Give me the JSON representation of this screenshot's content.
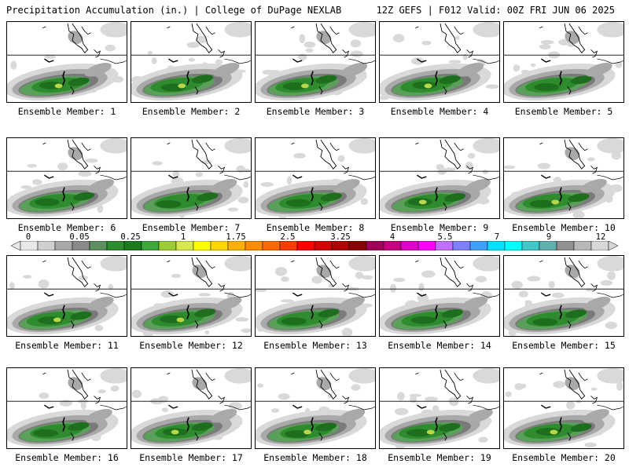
{
  "header": {
    "left_title": "Precipitation Accumulation (in.) | College of DuPage NEXLAB",
    "right_title": "12Z GEFS | F012 Valid: 00Z FRI JUN 06 2025"
  },
  "members": [
    "Ensemble Member: 1",
    "Ensemble Member: 2",
    "Ensemble Member: 3",
    "Ensemble Member: 4",
    "Ensemble Member: 5",
    "Ensemble Member: 6",
    "Ensemble Member: 7",
    "Ensemble Member: 8",
    "Ensemble Member: 9",
    "Ensemble Member: 10",
    "Ensemble Member: 11",
    "Ensemble Member: 12",
    "Ensemble Member: 13",
    "Ensemble Member: 14",
    "Ensemble Member: 15",
    "Ensemble Member: 16",
    "Ensemble Member: 17",
    "Ensemble Member: 18",
    "Ensemble Member: 19",
    "Ensemble Member: 20"
  ],
  "colorbar": {
    "tick_labels": [
      "0",
      "0.05",
      "0.25",
      "1",
      "1.75",
      "2.5",
      "3.25",
      "4",
      "5.5",
      "7",
      "9",
      "12"
    ],
    "colors": [
      "#e8e8e8",
      "#cfcfcf",
      "#a8a8a8",
      "#8a8a8a",
      "#5f8f5f",
      "#2e8b2e",
      "#1f7a1f",
      "#3da63d",
      "#9acd32",
      "#d7e84c",
      "#ffff00",
      "#ffd700",
      "#ffb000",
      "#ff8c00",
      "#ff6a00",
      "#ff3c00",
      "#ff0000",
      "#d40000",
      "#b00000",
      "#8b0000",
      "#a0005a",
      "#c8007f",
      "#e000c8",
      "#ff00ff",
      "#c070ff",
      "#8080ff",
      "#40a0ff",
      "#00e0ff",
      "#00ffff",
      "#40c8c8",
      "#60b0b0",
      "#909090",
      "#b8b8b8",
      "#d8d8d8"
    ]
  },
  "precip_colors": {
    "light_gray": "#d9d9d9",
    "gray": "#a9a9a9",
    "dark_gray": "#7a7a7a",
    "green_light": "#5aa05a",
    "green": "#2e8b2e",
    "green_dark": "#1d6e1d",
    "yellow_green": "#b8d84a"
  }
}
